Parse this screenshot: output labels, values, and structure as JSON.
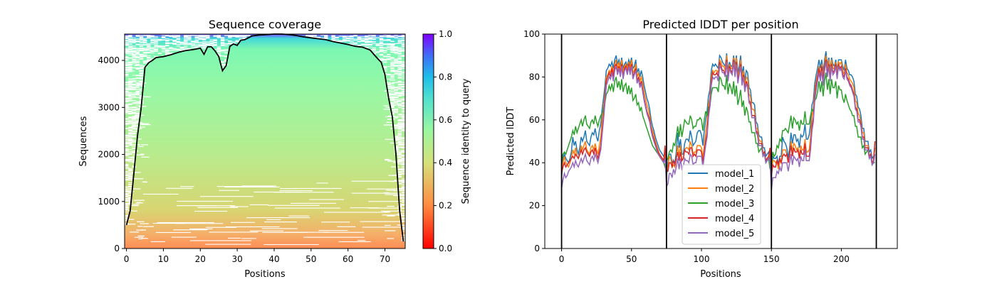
{
  "chart_data": [
    {
      "type": "heatmap",
      "title": "Sequence coverage",
      "xlabel": "Positions",
      "ylabel": "Sequences",
      "xlim": [
        -0.5,
        75.5
      ],
      "ylim": [
        0,
        4560
      ],
      "xticks": [
        0,
        10,
        20,
        30,
        40,
        50,
        60,
        70
      ],
      "yticks": [
        0,
        1000,
        2000,
        3000,
        4000
      ],
      "colorbar": {
        "label": "Sequence identity to query",
        "ticks": [
          "0.0",
          "0.2",
          "0.4",
          "0.6",
          "0.8",
          "1.0"
        ],
        "range": [
          0,
          1
        ]
      },
      "coverage_line": {
        "x": [
          0,
          1,
          2,
          3,
          4,
          5,
          6,
          7,
          8,
          10,
          12,
          14,
          16,
          18,
          20,
          21,
          22,
          23,
          24,
          25,
          26,
          27,
          28,
          29,
          30,
          31,
          32,
          33,
          34,
          36,
          38,
          40,
          42,
          44,
          46,
          48,
          50,
          52,
          54,
          56,
          58,
          60,
          62,
          64,
          66,
          67,
          68,
          69,
          70,
          71,
          72,
          73,
          74,
          75
        ],
        "y": [
          500,
          800,
          1600,
          2400,
          3000,
          3850,
          3950,
          4000,
          4060,
          4080,
          4120,
          4170,
          4210,
          4230,
          4260,
          4130,
          4290,
          4290,
          4200,
          4080,
          3780,
          3890,
          4300,
          4350,
          4320,
          4430,
          4440,
          4480,
          4520,
          4540,
          4550,
          4560,
          4560,
          4550,
          4530,
          4500,
          4480,
          4460,
          4440,
          4400,
          4370,
          4340,
          4300,
          4280,
          4220,
          4130,
          4040,
          3960,
          3700,
          3200,
          2800,
          2000,
          800,
          150
        ]
      }
    },
    {
      "type": "line",
      "title": "Predicted lDDT per position",
      "xlabel": "Positions",
      "ylabel": "Predicted lDDT",
      "xlim": [
        -12,
        240
      ],
      "ylim": [
        0,
        100
      ],
      "xticks": [
        0,
        50,
        100,
        150,
        200
      ],
      "yticks": [
        0,
        20,
        40,
        60,
        80,
        100
      ],
      "chain_boundaries": [
        0,
        75,
        150,
        225
      ],
      "legend_position": "lower center",
      "series": [
        {
          "name": "model_1",
          "color": "#1f77b4",
          "values": [
            33,
            42,
            44,
            42,
            41,
            40,
            42,
            45,
            52,
            48,
            50,
            46,
            44,
            47,
            52,
            50,
            52,
            55,
            50,
            49,
            48,
            52,
            54,
            53,
            56,
            52,
            50,
            55,
            58,
            65,
            70,
            76,
            83,
            84,
            86,
            85,
            87,
            84,
            88,
            90,
            86,
            88,
            85,
            89,
            84,
            86,
            87,
            85,
            88,
            86,
            89,
            84,
            85,
            88,
            82,
            84,
            80,
            83,
            80,
            76,
            73,
            70,
            68,
            65,
            60,
            57,
            55,
            52,
            50,
            48,
            46,
            45,
            44,
            43,
            42
          ]
        },
        {
          "name": "model_2",
          "color": "#ff7f0e",
          "values": [
            35,
            40,
            43,
            40,
            39,
            38,
            40,
            42,
            46,
            44,
            47,
            43,
            42,
            44,
            48,
            46,
            48,
            50,
            46,
            45,
            44,
            47,
            48,
            46,
            49,
            46,
            44,
            48,
            52,
            60,
            66,
            72,
            80,
            81,
            83,
            82,
            85,
            82,
            86,
            88,
            84,
            87,
            83,
            88,
            82,
            85,
            86,
            84,
            87,
            84,
            88,
            82,
            83,
            86,
            80,
            82,
            78,
            80,
            77,
            73,
            70,
            67,
            65,
            62,
            57,
            55,
            53,
            50,
            48,
            46,
            44,
            43,
            42,
            41,
            45
          ]
        },
        {
          "name": "model_3",
          "color": "#2ca02c",
          "values": [
            40,
            44,
            45,
            44,
            46,
            48,
            50,
            52,
            55,
            53,
            57,
            54,
            56,
            58,
            60,
            57,
            60,
            62,
            58,
            57,
            56,
            59,
            60,
            58,
            62,
            59,
            57,
            60,
            62,
            63,
            65,
            68,
            72,
            73,
            76,
            74,
            77,
            73,
            78,
            80,
            75,
            78,
            74,
            79,
            73,
            76,
            77,
            72,
            76,
            72,
            75,
            69,
            70,
            72,
            67,
            68,
            64,
            66,
            62,
            60,
            58,
            56,
            54,
            52,
            50,
            48,
            47,
            46,
            45,
            44,
            43,
            42,
            41,
            40,
            38
          ]
        },
        {
          "name": "model_4",
          "color": "#d62728",
          "values": [
            35,
            38,
            40,
            38,
            39,
            40,
            41,
            42,
            43,
            42,
            44,
            43,
            42,
            44,
            46,
            44,
            46,
            47,
            45,
            44,
            43,
            45,
            46,
            44,
            47,
            44,
            42,
            45,
            48,
            55,
            62,
            70,
            78,
            80,
            82,
            80,
            84,
            80,
            85,
            86,
            82,
            85,
            81,
            86,
            80,
            84,
            85,
            82,
            86,
            82,
            86,
            80,
            82,
            84,
            78,
            80,
            76,
            78,
            74,
            70,
            67,
            64,
            62,
            60,
            56,
            53,
            51,
            49,
            47,
            45,
            44,
            43,
            42,
            41,
            48
          ]
        },
        {
          "name": "model_5",
          "color": "#9467bd",
          "values": [
            28,
            32,
            35,
            33,
            34,
            36,
            37,
            38,
            40,
            38,
            41,
            39,
            38,
            40,
            42,
            40,
            42,
            44,
            41,
            40,
            39,
            42,
            43,
            41,
            44,
            42,
            40,
            43,
            46,
            53,
            60,
            68,
            76,
            78,
            80,
            79,
            82,
            78,
            83,
            85,
            81,
            84,
            80,
            85,
            79,
            83,
            84,
            81,
            85,
            81,
            85,
            79,
            81,
            83,
            77,
            79,
            75,
            77,
            73,
            69,
            66,
            63,
            61,
            59,
            55,
            52,
            50,
            48,
            46,
            44,
            43,
            42,
            41,
            40,
            42
          ]
        }
      ]
    }
  ]
}
